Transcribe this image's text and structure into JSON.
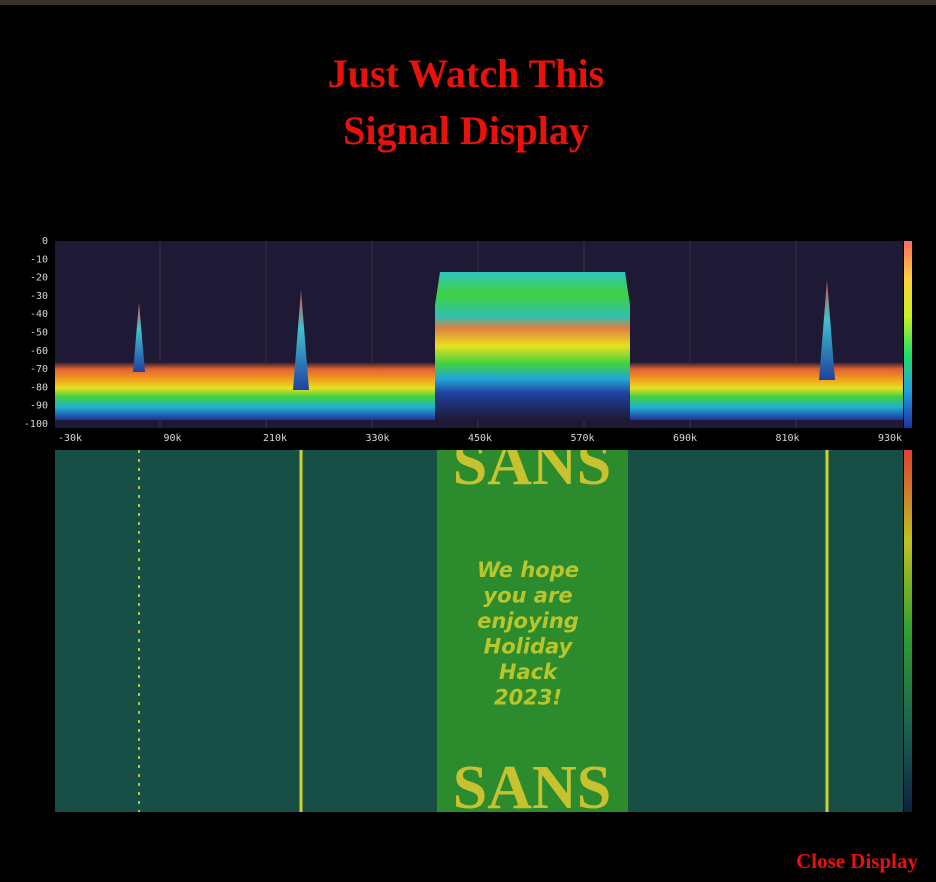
{
  "title": [
    "Just Watch This",
    "Signal Display"
  ],
  "spectrum": {
    "y_labels": [
      "0",
      "-10",
      "-20",
      "-30",
      "-40",
      "-50",
      "-60",
      "-70",
      "-80",
      "-90",
      "-100"
    ],
    "x_labels": [
      "-30k",
      "90k",
      "210k",
      "330k",
      "450k",
      "570k",
      "690k",
      "810k",
      "930k"
    ]
  },
  "waterfall": {
    "banner_top": "SANS",
    "message": [
      "We hope",
      "you are",
      "enjoying",
      "Holiday",
      "Hack",
      "2023!"
    ],
    "banner_bottom": "SANS"
  },
  "close_button": "Close Display"
}
